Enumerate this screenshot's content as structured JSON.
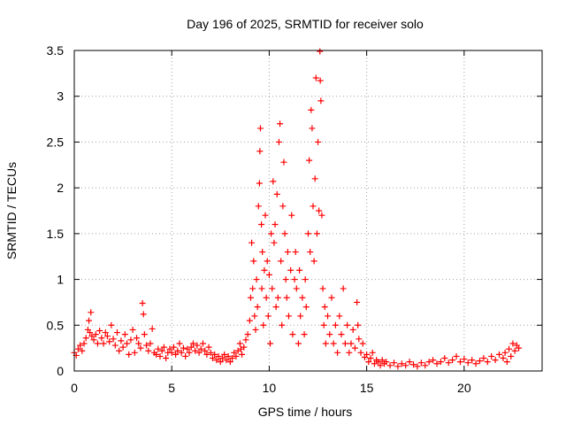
{
  "chart_data": {
    "type": "scatter",
    "title": "Day 196 of 2025, SRMTID for receiver solo",
    "xlabel": "GPS time / hours",
    "ylabel": "SRMTID / TECUs",
    "xlim": [
      0,
      24
    ],
    "ylim": [
      0,
      3.5
    ],
    "x_ticks": [
      0,
      5,
      10,
      15,
      20
    ],
    "x_tick_labels": [
      "0",
      "5",
      "10",
      "15",
      "20"
    ],
    "y_ticks": [
      0,
      0.5,
      1,
      1.5,
      2,
      2.5,
      3,
      3.5
    ],
    "y_tick_labels": [
      "0",
      "0.5",
      "1",
      "1.5",
      "2",
      "2.5",
      "3",
      "3.5"
    ],
    "grid": true,
    "marker": "+",
    "marker_color": "#ff0000",
    "series": [
      {
        "name": "SRMTID",
        "points": [
          [
            0.0,
            0.2
          ],
          [
            0.1,
            0.17
          ],
          [
            0.2,
            0.24
          ],
          [
            0.3,
            0.28
          ],
          [
            0.4,
            0.22
          ],
          [
            0.5,
            0.3
          ],
          [
            0.6,
            0.36
          ],
          [
            0.7,
            0.45
          ],
          [
            0.75,
            0.55
          ],
          [
            0.8,
            0.42
          ],
          [
            0.85,
            0.64
          ],
          [
            0.9,
            0.38
          ],
          [
            1.0,
            0.34
          ],
          [
            1.1,
            0.4
          ],
          [
            1.2,
            0.3
          ],
          [
            1.3,
            0.44
          ],
          [
            1.4,
            0.36
          ],
          [
            1.5,
            0.3
          ],
          [
            1.6,
            0.42
          ],
          [
            1.7,
            0.38
          ],
          [
            1.8,
            0.32
          ],
          [
            1.9,
            0.5
          ],
          [
            2.0,
            0.35
          ],
          [
            2.1,
            0.28
          ],
          [
            2.2,
            0.42
          ],
          [
            2.3,
            0.22
          ],
          [
            2.4,
            0.33
          ],
          [
            2.5,
            0.26
          ],
          [
            2.6,
            0.4
          ],
          [
            2.7,
            0.3
          ],
          [
            2.8,
            0.18
          ],
          [
            2.9,
            0.34
          ],
          [
            3.0,
            0.45
          ],
          [
            3.1,
            0.2
          ],
          [
            3.2,
            0.36
          ],
          [
            3.3,
            0.3
          ],
          [
            3.4,
            0.25
          ],
          [
            3.5,
            0.74
          ],
          [
            3.55,
            0.62
          ],
          [
            3.6,
            0.4
          ],
          [
            3.7,
            0.28
          ],
          [
            3.8,
            0.22
          ],
          [
            3.9,
            0.3
          ],
          [
            4.0,
            0.46
          ],
          [
            4.1,
            0.2
          ],
          [
            4.2,
            0.18
          ],
          [
            4.3,
            0.24
          ],
          [
            4.4,
            0.16
          ],
          [
            4.5,
            0.22
          ],
          [
            4.6,
            0.26
          ],
          [
            4.7,
            0.14
          ],
          [
            4.8,
            0.2
          ],
          [
            4.9,
            0.24
          ],
          [
            5.0,
            0.2
          ],
          [
            5.1,
            0.26
          ],
          [
            5.2,
            0.18
          ],
          [
            5.3,
            0.22
          ],
          [
            5.4,
            0.3
          ],
          [
            5.5,
            0.2
          ],
          [
            5.6,
            0.25
          ],
          [
            5.7,
            0.16
          ],
          [
            5.8,
            0.24
          ],
          [
            5.9,
            0.2
          ],
          [
            6.0,
            0.26
          ],
          [
            6.1,
            0.3
          ],
          [
            6.2,
            0.22
          ],
          [
            6.3,
            0.28
          ],
          [
            6.4,
            0.2
          ],
          [
            6.5,
            0.24
          ],
          [
            6.6,
            0.3
          ],
          [
            6.7,
            0.22
          ],
          [
            6.8,
            0.18
          ],
          [
            6.9,
            0.26
          ],
          [
            7.0,
            0.2
          ],
          [
            7.1,
            0.14
          ],
          [
            7.2,
            0.18
          ],
          [
            7.3,
            0.12
          ],
          [
            7.4,
            0.16
          ],
          [
            7.5,
            0.1
          ],
          [
            7.6,
            0.14
          ],
          [
            7.7,
            0.18
          ],
          [
            7.8,
            0.12
          ],
          [
            7.9,
            0.16
          ],
          [
            8.0,
            0.1
          ],
          [
            8.1,
            0.14
          ],
          [
            8.2,
            0.2
          ],
          [
            8.3,
            0.16
          ],
          [
            8.4,
            0.22
          ],
          [
            8.5,
            0.3
          ],
          [
            8.55,
            0.24
          ],
          [
            8.6,
            0.18
          ],
          [
            8.7,
            0.26
          ],
          [
            8.8,
            0.34
          ],
          [
            8.9,
            0.4
          ],
          [
            9.0,
            0.55
          ],
          [
            9.05,
            0.8
          ],
          [
            9.1,
            1.4
          ],
          [
            9.15,
            0.9
          ],
          [
            9.2,
            1.2
          ],
          [
            9.25,
            0.6
          ],
          [
            9.3,
            0.45
          ],
          [
            9.35,
            1.0
          ],
          [
            9.4,
            0.7
          ],
          [
            9.45,
            1.8
          ],
          [
            9.5,
            2.05
          ],
          [
            9.52,
            2.4
          ],
          [
            9.55,
            2.65
          ],
          [
            9.6,
            1.6
          ],
          [
            9.62,
            0.9
          ],
          [
            9.65,
            1.3
          ],
          [
            9.7,
            0.5
          ],
          [
            9.75,
            1.1
          ],
          [
            9.8,
            1.7
          ],
          [
            9.85,
            0.8
          ],
          [
            9.9,
            1.2
          ],
          [
            9.95,
            0.6
          ],
          [
            10.0,
            1.05
          ],
          [
            10.05,
            0.3
          ],
          [
            10.1,
            1.5
          ],
          [
            10.15,
            0.9
          ],
          [
            10.2,
            2.07
          ],
          [
            10.25,
            1.4
          ],
          [
            10.3,
            1.6
          ],
          [
            10.35,
            0.7
          ],
          [
            10.4,
            1.93
          ],
          [
            10.45,
            0.8
          ],
          [
            10.5,
            2.5
          ],
          [
            10.55,
            2.7
          ],
          [
            10.6,
            1.2
          ],
          [
            10.65,
            0.5
          ],
          [
            10.7,
            1.8
          ],
          [
            10.75,
            2.28
          ],
          [
            10.8,
            1.5
          ],
          [
            10.85,
            1.0
          ],
          [
            10.9,
            0.8
          ],
          [
            10.95,
            1.3
          ],
          [
            11.0,
            0.6
          ],
          [
            11.1,
            1.1
          ],
          [
            11.15,
            1.7
          ],
          [
            11.2,
            0.4
          ],
          [
            11.3,
            1.0
          ],
          [
            11.35,
            1.3
          ],
          [
            11.4,
            0.9
          ],
          [
            11.5,
            0.3
          ],
          [
            11.55,
            1.1
          ],
          [
            11.6,
            0.6
          ],
          [
            11.7,
            0.8
          ],
          [
            11.8,
            0.4
          ],
          [
            11.85,
            1.0
          ],
          [
            11.9,
            0.7
          ],
          [
            12.0,
            1.5
          ],
          [
            12.05,
            2.3
          ],
          [
            12.1,
            1.3
          ],
          [
            12.15,
            2.85
          ],
          [
            12.2,
            2.65
          ],
          [
            12.25,
            1.8
          ],
          [
            12.3,
            1.2
          ],
          [
            12.35,
            2.1
          ],
          [
            12.4,
            3.2
          ],
          [
            12.45,
            1.5
          ],
          [
            12.5,
            2.5
          ],
          [
            12.55,
            1.75
          ],
          [
            12.6,
            3.49
          ],
          [
            12.62,
            3.17
          ],
          [
            12.65,
            2.95
          ],
          [
            12.7,
            1.7
          ],
          [
            12.75,
            0.9
          ],
          [
            12.8,
            0.5
          ],
          [
            12.85,
            0.7
          ],
          [
            12.9,
            0.3
          ],
          [
            13.0,
            0.6
          ],
          [
            13.1,
            0.4
          ],
          [
            13.2,
            0.8
          ],
          [
            13.3,
            0.3
          ],
          [
            13.4,
            0.5
          ],
          [
            13.5,
            0.2
          ],
          [
            13.6,
            0.6
          ],
          [
            13.7,
            0.4
          ],
          [
            13.8,
            0.9
          ],
          [
            13.9,
            0.3
          ],
          [
            14.0,
            0.5
          ],
          [
            14.1,
            0.2
          ],
          [
            14.2,
            0.3
          ],
          [
            14.3,
            0.45
          ],
          [
            14.4,
            0.25
          ],
          [
            14.5,
            0.75
          ],
          [
            14.55,
            0.5
          ],
          [
            14.6,
            0.35
          ],
          [
            14.7,
            0.2
          ],
          [
            14.8,
            0.3
          ],
          [
            14.9,
            0.15
          ],
          [
            15.0,
            0.18
          ],
          [
            15.1,
            0.1
          ],
          [
            15.2,
            0.14
          ],
          [
            15.3,
            0.2
          ],
          [
            15.4,
            0.08
          ],
          [
            15.5,
            0.12
          ],
          [
            15.6,
            0.1
          ],
          [
            15.7,
            0.06
          ],
          [
            15.8,
            0.12
          ],
          [
            15.9,
            0.08
          ],
          [
            16.0,
            0.1
          ],
          [
            16.2,
            0.06
          ],
          [
            16.4,
            0.09
          ],
          [
            16.6,
            0.05
          ],
          [
            16.8,
            0.08
          ],
          [
            17.0,
            0.06
          ],
          [
            17.2,
            0.1
          ],
          [
            17.4,
            0.07
          ],
          [
            17.6,
            0.05
          ],
          [
            17.8,
            0.09
          ],
          [
            18.0,
            0.06
          ],
          [
            18.2,
            0.1
          ],
          [
            18.4,
            0.12
          ],
          [
            18.6,
            0.08
          ],
          [
            18.8,
            0.1
          ],
          [
            19.0,
            0.14
          ],
          [
            19.2,
            0.09
          ],
          [
            19.4,
            0.12
          ],
          [
            19.6,
            0.16
          ],
          [
            19.8,
            0.1
          ],
          [
            20.0,
            0.13
          ],
          [
            20.2,
            0.09
          ],
          [
            20.4,
            0.12
          ],
          [
            20.6,
            0.08
          ],
          [
            20.8,
            0.11
          ],
          [
            21.0,
            0.14
          ],
          [
            21.2,
            0.1
          ],
          [
            21.4,
            0.16
          ],
          [
            21.6,
            0.12
          ],
          [
            21.8,
            0.18
          ],
          [
            22.0,
            0.14
          ],
          [
            22.1,
            0.2
          ],
          [
            22.2,
            0.1
          ],
          [
            22.3,
            0.24
          ],
          [
            22.4,
            0.16
          ],
          [
            22.5,
            0.3
          ],
          [
            22.6,
            0.22
          ],
          [
            22.7,
            0.28
          ],
          [
            22.8,
            0.25
          ]
        ]
      }
    ]
  }
}
